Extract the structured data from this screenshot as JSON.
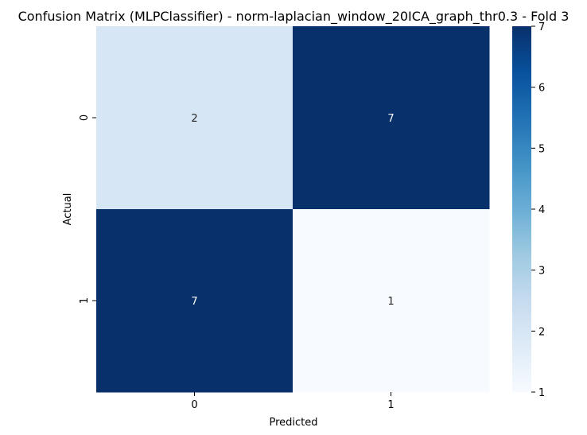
{
  "chart_data": {
    "type": "heatmap",
    "title": "Confusion Matrix (MLPClassifier) - norm-laplacian_window_20ICA_graph_thr0.3 - Fold 3",
    "xlabel": "Predicted",
    "ylabel": "Actual",
    "x_categories": [
      "0",
      "1"
    ],
    "y_categories": [
      "0",
      "1"
    ],
    "values": [
      [
        2,
        7
      ],
      [
        7,
        1
      ]
    ],
    "colormap": "Blues",
    "vmin": 1,
    "vmax": 7,
    "colorbar_ticks": [
      "1",
      "2",
      "3",
      "4",
      "5",
      "6",
      "7"
    ],
    "annotations": true
  }
}
